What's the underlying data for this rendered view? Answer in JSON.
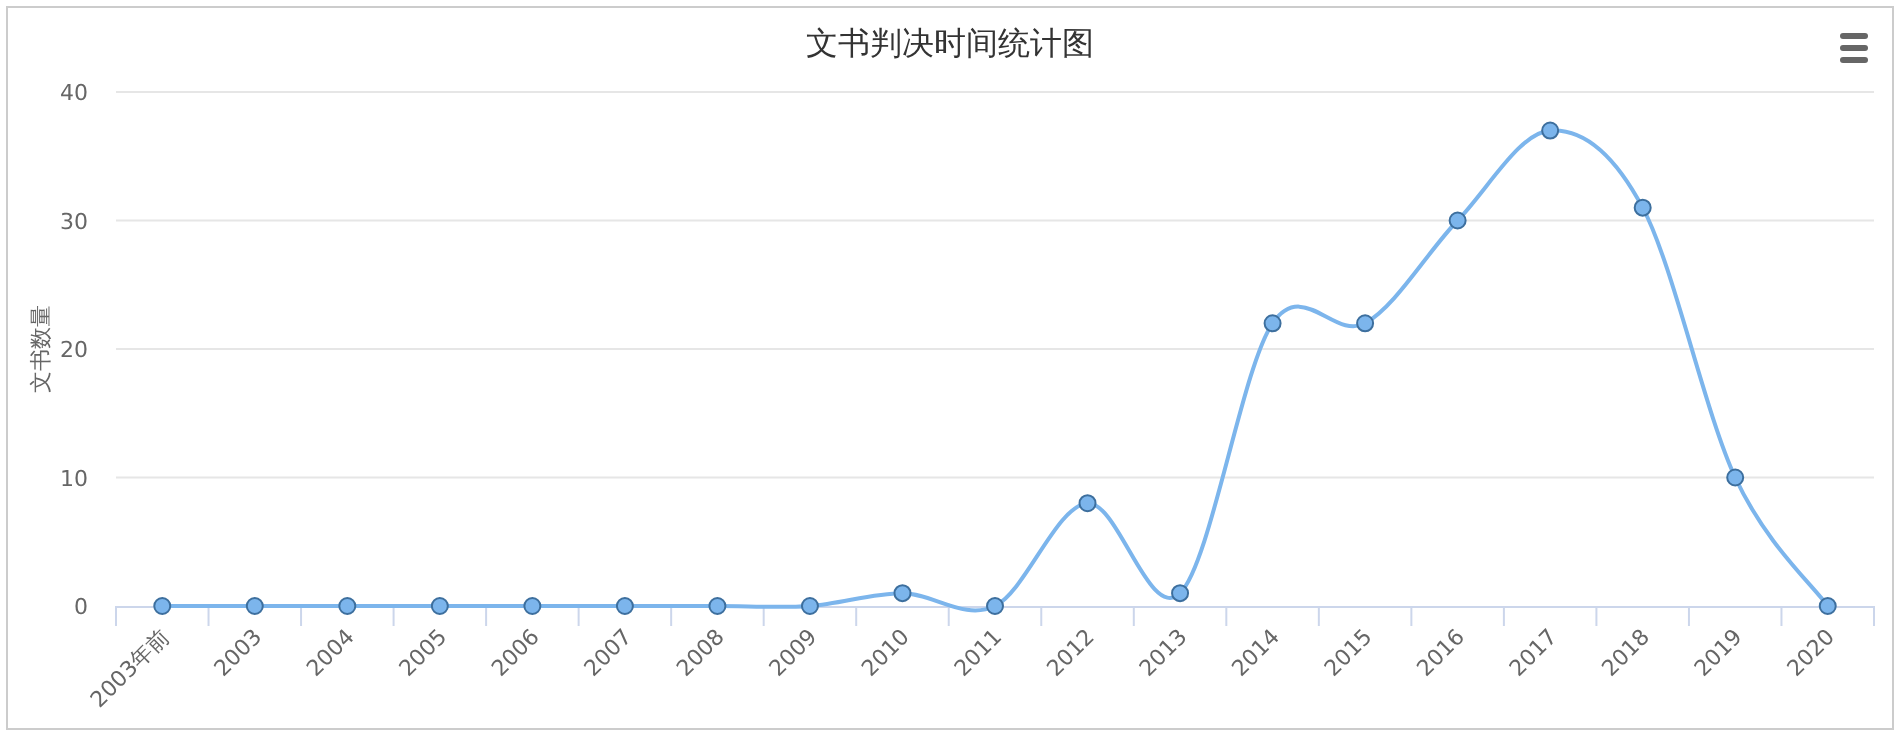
{
  "chart_data": {
    "type": "line",
    "title": "文书判决时间统计图",
    "ylabel": "文书数量",
    "categories": [
      "2003年前",
      "2003",
      "2004",
      "2005",
      "2006",
      "2007",
      "2008",
      "2009",
      "2010",
      "2011",
      "2012",
      "2013",
      "2014",
      "2015",
      "2016",
      "2017",
      "2018",
      "2019",
      "2020"
    ],
    "series": [
      {
        "color": "#7cb5ec",
        "values": [
          0,
          0,
          0,
          0,
          0,
          0,
          0,
          0,
          1,
          0,
          8,
          1,
          22,
          22,
          30,
          37,
          31,
          10,
          0
        ]
      }
    ],
    "ylim": [
      0,
      40
    ],
    "yticks": [
      0,
      10,
      20,
      30,
      40
    ],
    "grid": "y",
    "marker": "circle",
    "line_style": "solid"
  }
}
